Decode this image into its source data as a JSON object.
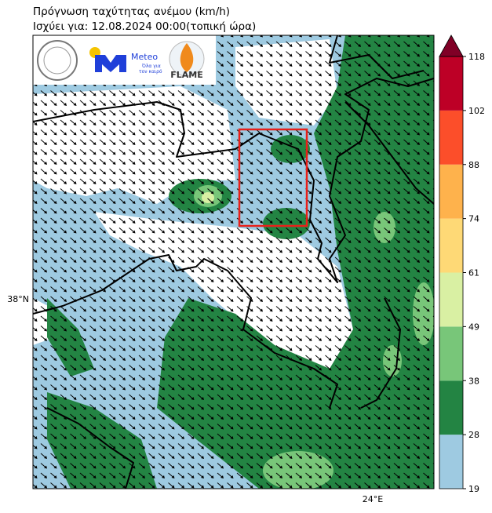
{
  "header": {
    "title": "Πρόγνωση ταχύτητας ανέμου (km/h)",
    "subtitle": "Ισχύει για: 12.08.2024 00:00(τοπική ώρα)"
  },
  "logos": {
    "meteo": "Meteo",
    "meteo_tagline": [
      "Όλα για",
      "τον καιρό"
    ],
    "flame": "FLAME"
  },
  "map": {
    "lat_label": "38°N",
    "lon_label": "24°E"
  },
  "colorbar": {
    "levels": [
      19,
      28,
      38,
      49,
      61,
      74,
      88,
      102,
      118
    ],
    "colors": [
      "#9ecae1",
      "#238443",
      "#78c679",
      "#d9f0a3",
      "#fed976",
      "#feb24c",
      "#fc4e2a",
      "#bd0026"
    ],
    "extend_color": "#800026"
  }
}
